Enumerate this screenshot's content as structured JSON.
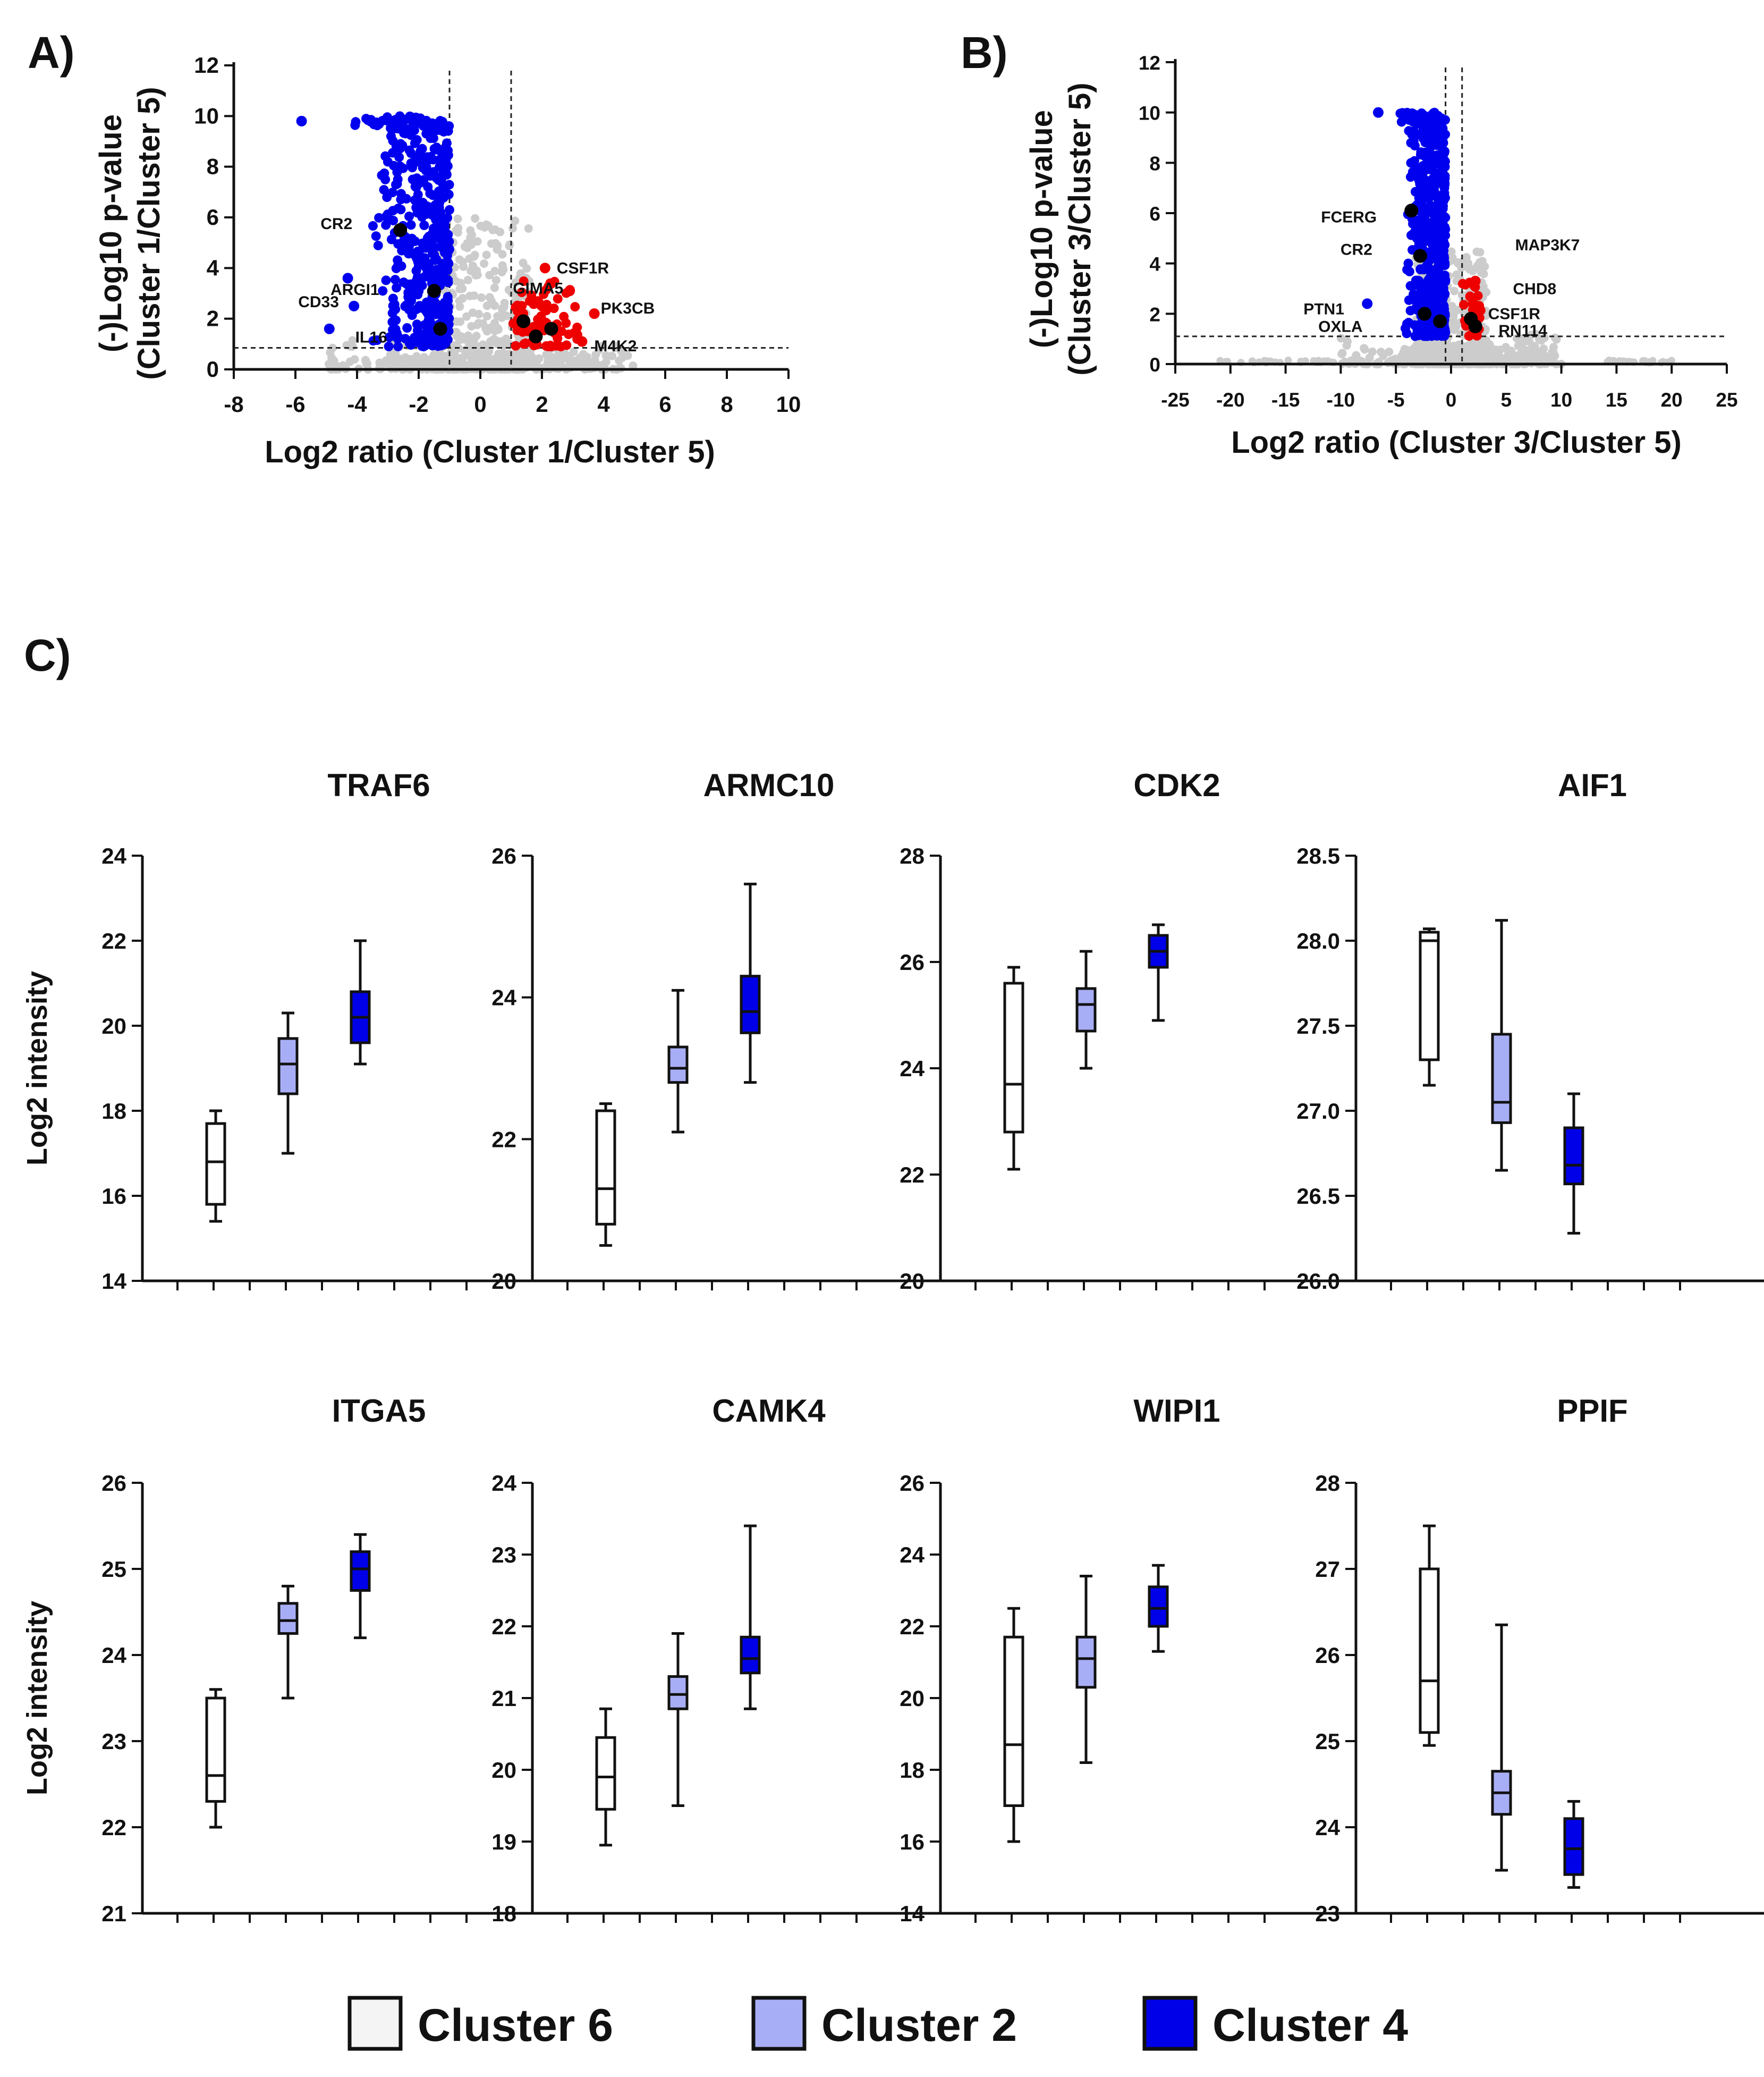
{
  "panels": {
    "A": "A)",
    "B": "B)",
    "C": "C)"
  },
  "colors": {
    "cluster6": "#ffffff",
    "cluster2": "#a8aef5",
    "cluster4": "#0000e8",
    "down": "#0000ee",
    "up": "#ee0000",
    "ns": "#cccccc",
    "highlight": "#000000"
  },
  "chart_data": [
    {
      "type": "scatter",
      "panel": "A",
      "title": "",
      "xlabel": "Log2 ratio (Cluster 1/Cluster 5)",
      "ylabel_lines": [
        "(-)Log10 p-value",
        "(Cluster 1/Cluster 5)"
      ],
      "xlim": [
        -8,
        10
      ],
      "ylim": [
        0,
        12
      ],
      "xticks": [
        -8,
        -6,
        -4,
        -2,
        0,
        2,
        4,
        6,
        8,
        10
      ],
      "yticks": [
        0,
        2,
        4,
        6,
        8,
        10,
        12
      ],
      "fold_change_threshold": [
        -1,
        1
      ],
      "pvalue_threshold": 0.85,
      "down_region": {
        "x_range": [
          -4.5,
          -1
        ],
        "y_range": [
          0.9,
          10
        ],
        "count": 420
      },
      "up_region": {
        "x_range": [
          1,
          3.2
        ],
        "y_range": [
          0.9,
          3.5
        ],
        "count": 70
      },
      "labeled_points": [
        {
          "label": "CR2",
          "x": -2.6,
          "y": 5.5,
          "group": "highlight"
        },
        {
          "label": "ARGI1",
          "x": -1.5,
          "y": 3.1,
          "group": "highlight"
        },
        {
          "label": "CD33",
          "x": -4.1,
          "y": 2.5,
          "group": "down"
        },
        {
          "label": "IL16",
          "x": -1.3,
          "y": 1.6,
          "group": "highlight"
        },
        {
          "label": "GIMA5",
          "x": 1.4,
          "y": 1.9,
          "group": "highlight"
        },
        {
          "label": "CSF1R",
          "x": 2.1,
          "y": 4.0,
          "group": "up"
        },
        {
          "label": "PK3CB",
          "x": 3.7,
          "y": 2.2,
          "group": "up"
        },
        {
          "label": "M4K2",
          "x": 1.8,
          "y": 1.3,
          "group": "highlight"
        }
      ],
      "extra_points": [
        {
          "x": -5.8,
          "y": 9.8,
          "group": "down"
        },
        {
          "x": -4.9,
          "y": 1.6,
          "group": "down"
        },
        {
          "x": -4.3,
          "y": 3.6,
          "group": "down"
        },
        {
          "x": 2.3,
          "y": 1.6,
          "group": "highlight"
        },
        {
          "x": 3.3,
          "y": 1.1,
          "group": "up"
        },
        {
          "x": 2.9,
          "y": 3.1,
          "group": "up"
        }
      ]
    },
    {
      "type": "scatter",
      "panel": "B",
      "title": "",
      "xlabel": "Log2 ratio (Cluster 3/Cluster 5)",
      "ylabel_lines": [
        "(-)Log10 p-value",
        "(Cluster 3/Cluster 5)"
      ],
      "xlim": [
        -25,
        25
      ],
      "ylim": [
        0,
        12
      ],
      "xticks": [
        -25,
        -20,
        -15,
        -10,
        -5,
        0,
        5,
        10,
        15,
        20,
        25
      ],
      "yticks": [
        0,
        2,
        4,
        6,
        8,
        10,
        12
      ],
      "fold_change_threshold": [
        -0.5,
        1
      ],
      "pvalue_threshold": 1.1,
      "down_region": {
        "x_range": [
          -5.5,
          -0.5
        ],
        "y_range": [
          1.1,
          10
        ],
        "count": 500
      },
      "up_region": {
        "x_range": [
          1,
          3
        ],
        "y_range": [
          1.1,
          3.3
        ],
        "count": 25
      },
      "labeled_points": [
        {
          "label": "FCERG",
          "x": -3.6,
          "y": 6.1,
          "group": "highlight"
        },
        {
          "label": "CR2",
          "x": -2.8,
          "y": 4.3,
          "group": "highlight"
        },
        {
          "label": "PTN1",
          "x": -7.6,
          "y": 2.4,
          "group": "down"
        },
        {
          "label": "OXLA",
          "x": -2.4,
          "y": 2.0,
          "group": "highlight"
        },
        {
          "label": "MAP3K7",
          "x": 2.2,
          "y": 3.3,
          "group": "up"
        },
        {
          "label": "CHD8",
          "x": 2.0,
          "y": 2.4,
          "group": "up"
        },
        {
          "label": "CSF1R",
          "x": 2.3,
          "y": 2.0,
          "group": "up"
        },
        {
          "label": "RN114",
          "x": 1.8,
          "y": 1.8,
          "group": "highlight"
        }
      ],
      "extra_points": [
        {
          "x": -6.6,
          "y": 10.0,
          "group": "down"
        },
        {
          "x": -1.0,
          "y": 1.7,
          "group": "highlight"
        },
        {
          "x": 2.2,
          "y": 1.5,
          "group": "highlight"
        }
      ]
    },
    {
      "type": "box",
      "panel": "C",
      "title": "TRAF6",
      "ylabel": "Log2 intensity",
      "ylim": [
        14,
        24
      ],
      "yticks": [
        14,
        16,
        18,
        20,
        22,
        24
      ],
      "series": [
        {
          "name": "Cluster 6",
          "min": 15.4,
          "q1": 15.8,
          "median": 16.8,
          "q3": 17.7,
          "max": 18.0
        },
        {
          "name": "Cluster 2",
          "min": 17.0,
          "q1": 18.4,
          "median": 19.1,
          "q3": 19.7,
          "max": 20.3
        },
        {
          "name": "Cluster 4",
          "min": 19.1,
          "q1": 19.6,
          "median": 20.2,
          "q3": 20.8,
          "max": 22.0
        }
      ]
    },
    {
      "type": "box",
      "panel": "C",
      "title": "ARMC10",
      "ylabel": "",
      "ylim": [
        20,
        26
      ],
      "yticks": [
        20,
        22,
        24,
        26
      ],
      "series": [
        {
          "name": "Cluster 6",
          "min": 20.5,
          "q1": 20.8,
          "median": 21.3,
          "q3": 22.4,
          "max": 22.5
        },
        {
          "name": "Cluster 2",
          "min": 22.1,
          "q1": 22.8,
          "median": 23.0,
          "q3": 23.3,
          "max": 24.1
        },
        {
          "name": "Cluster 4",
          "min": 22.8,
          "q1": 23.5,
          "median": 23.8,
          "q3": 24.3,
          "max": 25.6
        }
      ]
    },
    {
      "type": "box",
      "panel": "C",
      "title": "CDK2",
      "ylabel": "",
      "ylim": [
        20,
        28
      ],
      "yticks": [
        20,
        22,
        24,
        26,
        28
      ],
      "series": [
        {
          "name": "Cluster 6",
          "min": 22.1,
          "q1": 22.8,
          "median": 23.7,
          "q3": 25.6,
          "max": 25.9
        },
        {
          "name": "Cluster 2",
          "min": 24.0,
          "q1": 24.7,
          "median": 25.2,
          "q3": 25.5,
          "max": 26.2
        },
        {
          "name": "Cluster 4",
          "min": 24.9,
          "q1": 25.9,
          "median": 26.2,
          "q3": 26.5,
          "max": 26.7
        }
      ]
    },
    {
      "type": "box",
      "panel": "C",
      "title": "AIF1",
      "ylabel": "",
      "ylim": [
        26.0,
        28.5
      ],
      "yticks": [
        "26.0",
        "26.5",
        "27.0",
        "27.5",
        "28.0",
        "28.5"
      ],
      "series": [
        {
          "name": "Cluster 6",
          "min": 27.15,
          "q1": 27.3,
          "median": 28.0,
          "q3": 28.05,
          "max": 28.07
        },
        {
          "name": "Cluster 2",
          "min": 26.65,
          "q1": 26.93,
          "median": 27.05,
          "q3": 27.45,
          "max": 28.12
        },
        {
          "name": "Cluster 4",
          "min": 26.28,
          "q1": 26.57,
          "median": 26.68,
          "q3": 26.9,
          "max": 27.1
        }
      ]
    },
    {
      "type": "box",
      "panel": "C",
      "title": "ITGA5",
      "ylabel": "Log2 intensity",
      "ylim": [
        21,
        26
      ],
      "yticks": [
        21,
        22,
        23,
        24,
        25,
        26
      ],
      "series": [
        {
          "name": "Cluster 6",
          "min": 22.0,
          "q1": 22.3,
          "median": 22.6,
          "q3": 23.5,
          "max": 23.6
        },
        {
          "name": "Cluster 2",
          "min": 23.5,
          "q1": 24.25,
          "median": 24.4,
          "q3": 24.6,
          "max": 24.8
        },
        {
          "name": "Cluster 4",
          "min": 24.2,
          "q1": 24.75,
          "median": 25.0,
          "q3": 25.2,
          "max": 25.4
        }
      ]
    },
    {
      "type": "box",
      "panel": "C",
      "title": "CAMK4",
      "ylabel": "",
      "ylim": [
        18,
        24
      ],
      "yticks": [
        18,
        19,
        20,
        21,
        22,
        23,
        24
      ],
      "series": [
        {
          "name": "Cluster 6",
          "min": 18.95,
          "q1": 19.45,
          "median": 19.9,
          "q3": 20.45,
          "max": 20.85
        },
        {
          "name": "Cluster 2",
          "min": 19.5,
          "q1": 20.85,
          "median": 21.05,
          "q3": 21.3,
          "max": 21.9
        },
        {
          "name": "Cluster 4",
          "min": 20.85,
          "q1": 21.35,
          "median": 21.55,
          "q3": 21.85,
          "max": 23.4
        }
      ]
    },
    {
      "type": "box",
      "panel": "C",
      "title": "WIPI1",
      "ylabel": "",
      "ylim": [
        14,
        26
      ],
      "yticks": [
        14,
        16,
        18,
        20,
        22,
        24,
        26
      ],
      "series": [
        {
          "name": "Cluster 6",
          "min": 16.0,
          "q1": 17.0,
          "median": 18.7,
          "q3": 21.7,
          "max": 22.5
        },
        {
          "name": "Cluster 2",
          "min": 18.2,
          "q1": 20.3,
          "median": 21.1,
          "q3": 21.7,
          "max": 23.4
        },
        {
          "name": "Cluster 4",
          "min": 21.3,
          "q1": 22.0,
          "median": 22.5,
          "q3": 23.1,
          "max": 23.7
        }
      ]
    },
    {
      "type": "box",
      "panel": "C",
      "title": "PPIF",
      "ylabel": "",
      "ylim": [
        23,
        28
      ],
      "yticks": [
        23,
        24,
        25,
        26,
        27,
        28
      ],
      "series": [
        {
          "name": "Cluster 6",
          "min": 24.95,
          "q1": 25.1,
          "median": 25.7,
          "q3": 27.0,
          "max": 27.5
        },
        {
          "name": "Cluster 2",
          "min": 23.5,
          "q1": 24.15,
          "median": 24.4,
          "q3": 24.65,
          "max": 26.35
        },
        {
          "name": "Cluster 4",
          "min": 23.3,
          "q1": 23.45,
          "median": 23.75,
          "q3": 24.1,
          "max": 24.3
        }
      ]
    }
  ],
  "legend": [
    {
      "label": "Cluster 6",
      "color": "#f4f4f4"
    },
    {
      "label": "Cluster 2",
      "color": "#a8aef5"
    },
    {
      "label": "Cluster 4",
      "color": "#0000e8"
    }
  ]
}
